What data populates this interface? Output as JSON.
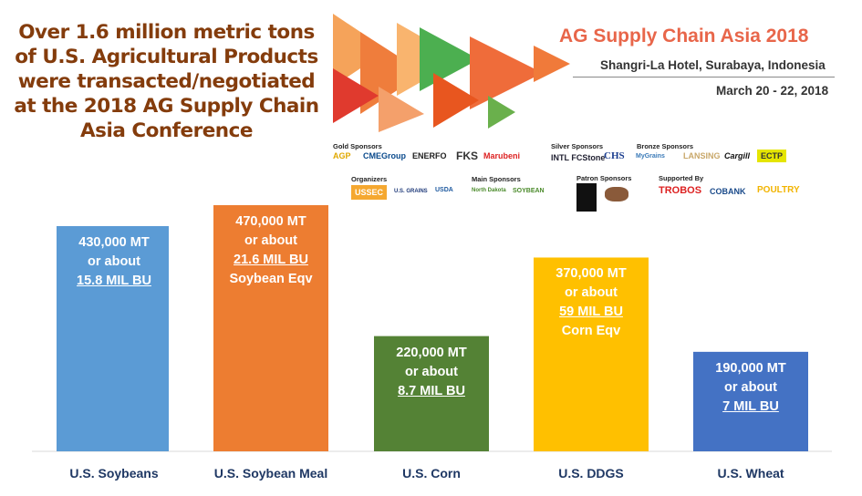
{
  "headline": "Over 1.6 million metric tons of U.S. Agricultural Products were transacted/negotiated at the 2018 AG Supply Chain Asia Conference",
  "event": {
    "title": "AG Supply Chain Asia 2018",
    "location": "Shangri-La Hotel, Surabaya, Indonesia",
    "dates": "March 20 - 22, 2018"
  },
  "sponsors": {
    "gold": {
      "label": "Gold Sponsors",
      "logos": [
        "AGP",
        "CMEGroup",
        "ENERFO",
        "FKS",
        "Marubeni"
      ]
    },
    "silver": {
      "label": "Silver Sponsors",
      "logos": [
        "INTL FCStone",
        "CHS"
      ]
    },
    "bronze": {
      "label": "Bronze Sponsors",
      "logos": [
        "MyGrains",
        "LANSING",
        "Cargill",
        "ECTP"
      ]
    },
    "organizers": {
      "label": "Organizers",
      "logos": [
        "USSEC",
        "U.S. GRAINS",
        "USDA"
      ]
    },
    "main": {
      "label": "Main Sponsors",
      "logos": [
        "North Dakota",
        "SOYBEAN"
      ]
    },
    "patron": {
      "label": "Patron Sponsors",
      "logos": []
    },
    "supported": {
      "label": "Supported By",
      "logos": [
        "TROBOS",
        "COBANK",
        "POULTRY"
      ]
    }
  },
  "chart_data": {
    "type": "bar",
    "categories": [
      "U.S. Soybeans",
      "U.S. Soybean Meal",
      "U.S. Corn",
      "U.S. DDGS",
      "U.S. Wheat"
    ],
    "values": [
      430000,
      470000,
      220000,
      370000,
      190000
    ],
    "unit": "MT",
    "colors": [
      "#5b9bd5",
      "#ed7d31",
      "#548235",
      "#ffc000",
      "#4472c4"
    ],
    "data_labels": [
      {
        "amount": "430,000 MT",
        "mid": "or about",
        "bu": "15.8 MIL BU",
        "note": ""
      },
      {
        "amount": "470,000 MT",
        "mid": "or about",
        "bu": "21.6 MIL BU",
        "note": "Soybean Eqv"
      },
      {
        "amount": "220,000 MT",
        "mid": "or about",
        "bu": "8.7 MIL BU",
        "note": ""
      },
      {
        "amount": "370,000 MT",
        "mid": "or about",
        "bu": "59 MIL BU",
        "note": "Corn Eqv"
      },
      {
        "amount": "190,000 MT",
        "mid": "or about",
        "bu": "7 MIL BU",
        "note": ""
      }
    ],
    "grid": false,
    "legend": "none"
  }
}
